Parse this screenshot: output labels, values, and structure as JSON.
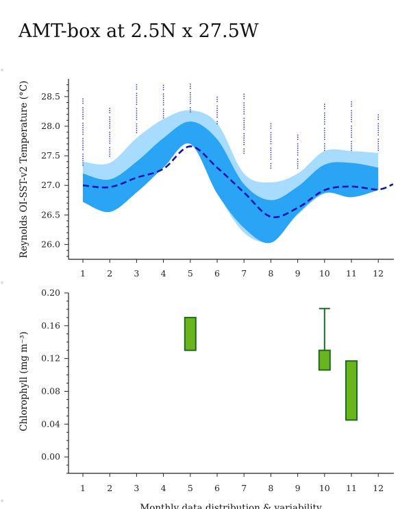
{
  "title": "AMT-box at 2.5N x 27.5W",
  "colors": {
    "outer_band": "#a8dcff",
    "inner_band": "#2aa4f4",
    "climatology_line": "#1414a8",
    "obs_points": "#2a2ae0",
    "chl_box_fill": "#6ab41e",
    "chl_box_stroke": "#1e6a1e"
  },
  "chart_data": [
    {
      "type": "area",
      "ylabel": "Reynolds OI-SST-v2 Temperature (°C)",
      "xlabel": "",
      "xlim": [
        0.6,
        12.55
      ],
      "ylim": [
        25.75,
        28.8
      ],
      "x_ticks": [
        "1",
        "2",
        "3",
        "4",
        "5",
        "6",
        "7",
        "8",
        "9",
        "10",
        "11",
        "12"
      ],
      "y_ticks": [
        "26.0",
        "26.5",
        "27.0",
        "27.5",
        "28.0",
        "28.5"
      ],
      "y_tick_values": [
        26.0,
        26.5,
        27.0,
        27.5,
        28.0,
        28.5
      ],
      "series": [
        {
          "role": "outer_band",
          "x": [
            1,
            2,
            3,
            4,
            5,
            6,
            7,
            8,
            9,
            10,
            11,
            12
          ],
          "upper": [
            27.4,
            27.38,
            27.8,
            28.12,
            28.27,
            28.05,
            27.2,
            27.05,
            27.2,
            27.58,
            27.58,
            27.55
          ],
          "lower": [
            26.74,
            26.58,
            26.9,
            27.32,
            27.72,
            26.88,
            26.2,
            26.06,
            26.5,
            26.86,
            26.8,
            26.92
          ]
        },
        {
          "role": "inner_band",
          "x": [
            1,
            2,
            3,
            4,
            5,
            6,
            7,
            8,
            9,
            10,
            11,
            12
          ],
          "upper": [
            27.2,
            27.1,
            27.4,
            27.8,
            28.08,
            27.78,
            27.02,
            26.75,
            26.98,
            27.35,
            27.38,
            27.3
          ],
          "lower": [
            26.72,
            26.55,
            26.88,
            27.3,
            27.7,
            26.86,
            26.28,
            26.03,
            26.52,
            26.87,
            26.8,
            26.92
          ]
        },
        {
          "role": "climatology_line",
          "x": [
            1,
            2,
            3,
            4,
            5,
            6,
            7,
            8,
            9,
            10,
            11,
            12,
            12.55
          ],
          "values": [
            27.0,
            26.97,
            27.13,
            27.28,
            27.66,
            27.3,
            26.88,
            26.47,
            26.62,
            26.92,
            26.98,
            26.93,
            27.02
          ]
        },
        {
          "role": "obs_points",
          "x": [
            1,
            2,
            3,
            4,
            5,
            6,
            7,
            8,
            9,
            10,
            11,
            12
          ],
          "min": [
            27.35,
            27.5,
            27.9,
            28.15,
            28.25,
            28.05,
            27.55,
            27.3,
            27.3,
            27.6,
            27.6,
            27.6
          ],
          "max": [
            28.47,
            28.31,
            28.71,
            28.7,
            28.72,
            28.5,
            28.55,
            28.05,
            27.86,
            28.38,
            28.42,
            28.2
          ]
        }
      ]
    },
    {
      "type": "box",
      "ylabel": "Chlorophyll (mg m⁻³)",
      "xlabel": "Monthly data distribution & variability",
      "xlim": [
        0.6,
        12.55
      ],
      "ylim": [
        -0.02,
        0.2
      ],
      "x_ticks": [
        "1",
        "2",
        "3",
        "4",
        "5",
        "6",
        "7",
        "8",
        "9",
        "10",
        "11",
        "12"
      ],
      "y_ticks": [
        "0.00",
        "0.04",
        "0.08",
        "0.12",
        "0.16",
        "0.20"
      ],
      "y_tick_values": [
        0.0,
        0.04,
        0.08,
        0.12,
        0.16,
        0.2
      ],
      "boxes": [
        {
          "x": 5,
          "q1": 0.13,
          "q3": 0.17
        },
        {
          "x": 10,
          "q1": 0.106,
          "q3": 0.13,
          "whisker_high": 0.181
        },
        {
          "x": 11,
          "q1": 0.045,
          "q3": 0.117
        }
      ]
    }
  ]
}
